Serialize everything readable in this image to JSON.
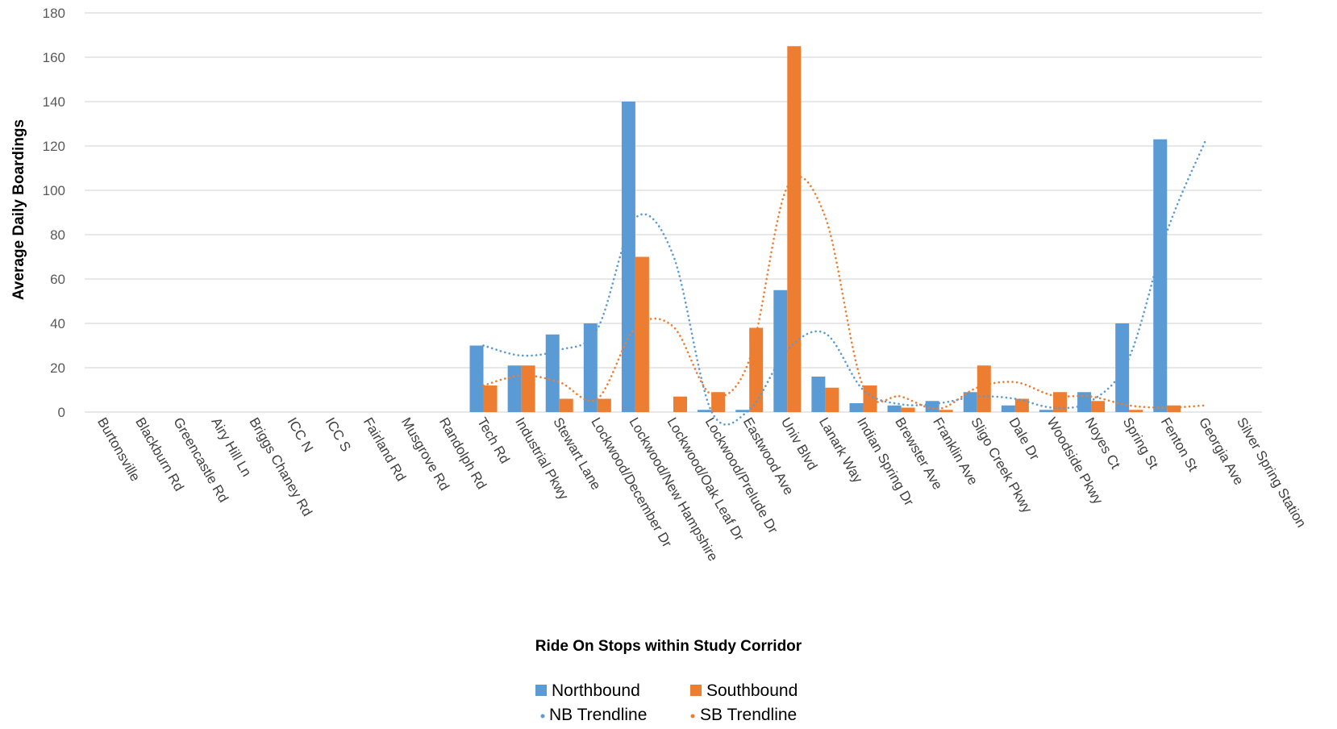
{
  "chart_data": {
    "type": "bar",
    "xlabel": "Ride On Stops within Study Corridor",
    "ylabel": "Average Daily Boardings",
    "ylim": [
      0,
      180
    ],
    "yticks": [
      0,
      20,
      40,
      60,
      80,
      100,
      120,
      140,
      160,
      180
    ],
    "grid": true,
    "legend_position": "bottom-center",
    "categories": [
      "Burtonsville",
      "Blackburn Rd",
      "Greencastle Rd",
      "Airy Hill Ln",
      "Briggs Chaney Rd",
      "ICC N",
      "ICC S",
      "Fairland Rd",
      "Musgrove Rd",
      "Randolph Rd",
      "Tech Rd",
      "Industrial Pkwy",
      "Stewart Lane",
      "Lockwood/December Dr",
      "Lockwood/New Hampshire",
      "Lockwood/Oak Leaf Dr",
      "Lockwood/Prelude Dr",
      "Eastwood Ave",
      "Univ Blvd",
      "Lanark Way",
      "Indian Spring Dr",
      "Brewster Ave",
      "Franklin Ave",
      "Sligo Creek Pkwy",
      "Dale Dr",
      "Woodside Pkwy",
      "Noyes Ct",
      "Spring St",
      "Fenton St",
      "Georgia Ave",
      "Silver Spring Station"
    ],
    "series": [
      {
        "name": "Northbound",
        "kind": "bar",
        "color": "#5B9BD5",
        "values": [
          null,
          null,
          null,
          null,
          null,
          null,
          null,
          null,
          null,
          null,
          30,
          21,
          35,
          40,
          140,
          null,
          1,
          1,
          55,
          16,
          4,
          3,
          5,
          9,
          3,
          1,
          9,
          40,
          123,
          null,
          null
        ]
      },
      {
        "name": "Southbound",
        "kind": "bar",
        "color": "#ED7D31",
        "values": [
          null,
          null,
          null,
          null,
          null,
          null,
          null,
          null,
          null,
          null,
          12,
          21,
          6,
          6,
          70,
          7,
          9,
          38,
          165,
          11,
          12,
          2,
          1,
          21,
          6,
          9,
          5,
          1,
          3,
          null,
          null
        ]
      },
      {
        "name": "NB Trendline",
        "kind": "dotted-line",
        "color": "#5B9BD5",
        "values": [
          null,
          null,
          null,
          null,
          null,
          null,
          null,
          null,
          null,
          null,
          30,
          25.5,
          28,
          37.5,
          87.5,
          70.5,
          0.5,
          1,
          28,
          35.5,
          10,
          3.5,
          4,
          7,
          6,
          2,
          5,
          24.5,
          81.5,
          122,
          null
        ]
      },
      {
        "name": "SB Trendline",
        "kind": "dotted-line",
        "color": "#ED7D31",
        "values": [
          null,
          null,
          null,
          null,
          null,
          null,
          null,
          null,
          null,
          null,
          12,
          16.5,
          13.5,
          6,
          38,
          38.5,
          8,
          23.5,
          101.5,
          88,
          11.5,
          7,
          1.5,
          11,
          13.5,
          7.5,
          7,
          3,
          2,
          3,
          null
        ]
      }
    ]
  }
}
